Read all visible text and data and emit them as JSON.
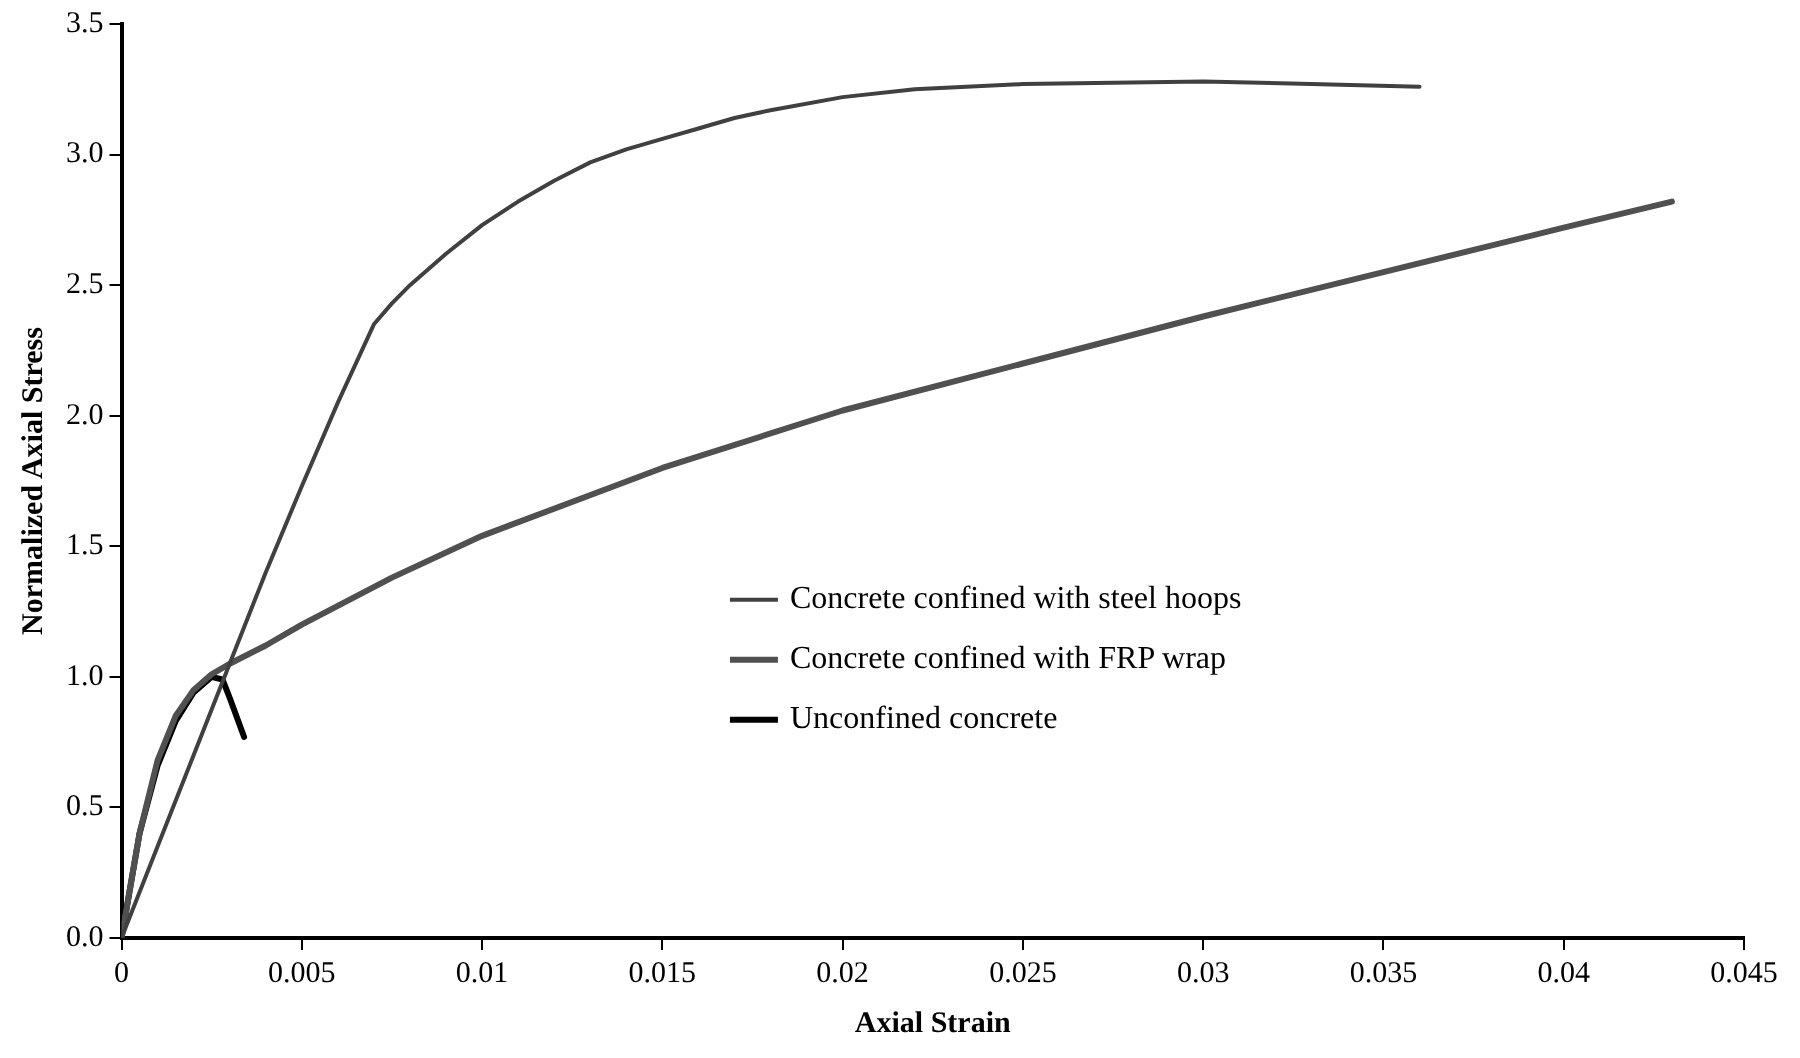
{
  "chart_data": {
    "type": "line",
    "xlabel": "Axial Strain",
    "ylabel": "Normalized Axial Stress",
    "xlim": [
      0,
      0.045
    ],
    "xticks": [
      0,
      0.005,
      0.01,
      0.015,
      0.02,
      0.025,
      0.03,
      0.035,
      0.04,
      0.045
    ],
    "ylim": [
      0,
      3.5
    ],
    "yticks": [
      {
        "value": 0,
        "label": "0.0"
      },
      {
        "value": 0.5,
        "label": "0.5"
      },
      {
        "value": 1,
        "label": "1.0"
      },
      {
        "value": 1.5,
        "label": "1.5"
      },
      {
        "value": 2,
        "label": "2.0"
      },
      {
        "value": 2.5,
        "label": "2.5"
      },
      {
        "value": 3,
        "label": "3.0"
      },
      {
        "value": 3.5,
        "label": "3.5"
      }
    ],
    "grid": false,
    "legend": "right",
    "marker": "none",
    "line_style": "solid",
    "series": [
      {
        "name": "Concrete confined with steel hoops",
        "color": "#404040",
        "x": [
          0,
          0.001,
          0.002,
          0.003,
          0.004,
          0.005,
          0.006,
          0.007,
          0.0075,
          0.008,
          0.009,
          0.01,
          0.011,
          0.012,
          0.013,
          0.014,
          0.015,
          0.016,
          0.017,
          0.018,
          0.02,
          0.022,
          0.025,
          0.03,
          0.033,
          0.036
        ],
        "values": [
          0,
          0.35,
          0.7,
          1.05,
          1.4,
          1.73,
          2.05,
          2.35,
          2.43,
          2.5,
          2.62,
          2.73,
          2.82,
          2.9,
          2.97,
          3.02,
          3.06,
          3.1,
          3.14,
          3.17,
          3.22,
          3.25,
          3.27,
          3.28,
          3.27,
          3.26
        ]
      },
      {
        "name": "Concrete confined with FRP wrap",
        "color": "#505050",
        "x": [
          0,
          0.0005,
          0.001,
          0.0015,
          0.002,
          0.0025,
          0.003,
          0.004,
          0.005,
          0.0075,
          0.01,
          0.015,
          0.02,
          0.025,
          0.03,
          0.035,
          0.04,
          0.043
        ],
        "values": [
          0,
          0.4,
          0.68,
          0.85,
          0.95,
          1.01,
          1.05,
          1.12,
          1.2,
          1.38,
          1.54,
          1.8,
          2.02,
          2.2,
          2.38,
          2.55,
          2.72,
          2.82
        ]
      },
      {
        "name": "Unconfined concrete",
        "color": "#000000",
        "x": [
          0,
          0.0005,
          0.001,
          0.0015,
          0.002,
          0.0025,
          0.0028,
          0.003,
          0.0034
        ],
        "values": [
          0,
          0.4,
          0.66,
          0.83,
          0.94,
          1.0,
          0.99,
          0.92,
          0.77
        ]
      }
    ]
  }
}
